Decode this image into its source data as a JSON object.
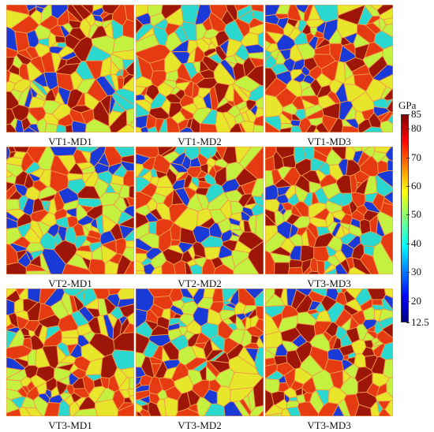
{
  "panels": [
    {
      "label": "VT1-MD1",
      "seed": 11
    },
    {
      "label": "VT1-MD2",
      "seed": 23
    },
    {
      "label": "VT1-MD3",
      "seed": 37
    },
    {
      "label": "VT2-MD1",
      "seed": 41
    },
    {
      "label": "VT2-MD2",
      "seed": 53
    },
    {
      "label": "VT3-MD3",
      "seed": 67
    },
    {
      "label": "VT3-MD1",
      "seed": 71
    },
    {
      "label": "VT3-MD2",
      "seed": 83
    },
    {
      "label": "VT3-MD3",
      "seed": 97
    }
  ],
  "colorbar": {
    "unit": "GPa",
    "min": 12.5,
    "max": 85,
    "ticks": [
      {
        "label": "85",
        "value": 85
      },
      {
        "label": "80",
        "value": 80
      },
      {
        "label": "70",
        "value": 70
      },
      {
        "label": "60",
        "value": 60
      },
      {
        "label": "50",
        "value": 50
      },
      {
        "label": "40",
        "value": 40
      },
      {
        "label": "30",
        "value": 30
      },
      {
        "label": "20",
        "value": 20
      },
      {
        "label": "12.5",
        "value": 12.5
      }
    ],
    "grain_colors": [
      "#1a3ad8",
      "#c4f040",
      "#e8e62a",
      "#e63a12",
      "#9e1608",
      "#2ad8d0"
    ],
    "boundary_color": "#f09a48"
  }
}
